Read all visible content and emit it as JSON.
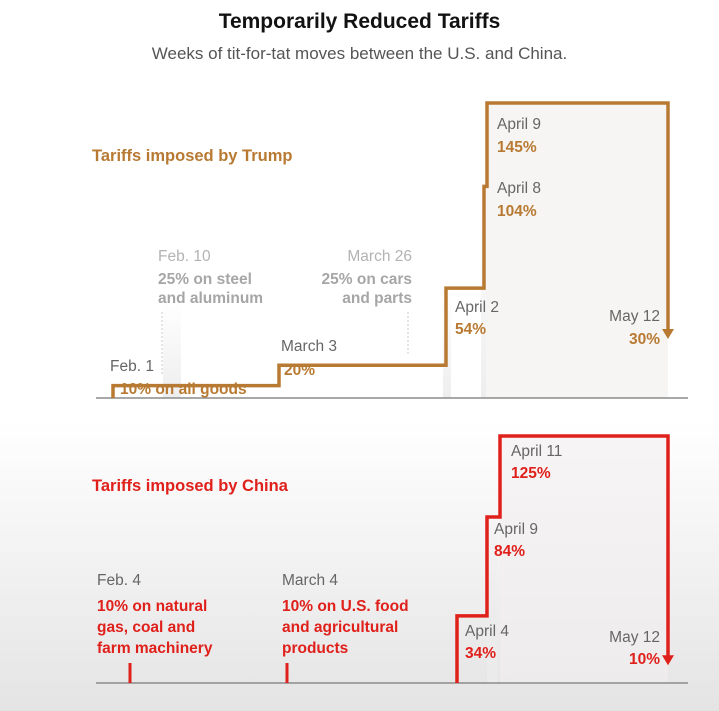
{
  "header": {
    "title": "Temporarily Reduced Tariffs",
    "subtitle": "Weeks of tit-for-tat moves between the U.S. and China."
  },
  "colors": {
    "us": "#b87a32",
    "china": "#e0201b",
    "axis": "#8c8c8c",
    "muted": "#a6a6a6"
  },
  "chart_data": [
    {
      "type": "step-line",
      "title": "Tariffs imposed by Trump",
      "unit": "%",
      "ylim": [
        0,
        145
      ],
      "steps": [
        {
          "date": "Feb. 1",
          "value": 10,
          "label": "10% on all goods"
        },
        {
          "date": "March 3",
          "value": 20,
          "label": "20%"
        },
        {
          "date": "April 2",
          "value": 54,
          "label": "54%"
        },
        {
          "date": "April 8",
          "value": 104,
          "label": "104%"
        },
        {
          "date": "April 9",
          "value": 145,
          "label": "145%"
        },
        {
          "date": "May 12",
          "value": 30,
          "label": "30%"
        }
      ],
      "context_markers": [
        {
          "date": "Feb. 10",
          "label_line1": "25% on steel",
          "label_line2": "and aluminum"
        },
        {
          "date": "March 26",
          "label_line1": "25% on cars",
          "label_line2": "and parts"
        }
      ]
    },
    {
      "type": "step-line",
      "title": "Tariffs imposed by China",
      "unit": "%",
      "ylim": [
        0,
        125
      ],
      "steps": [
        {
          "date": "April 4",
          "value": 34,
          "label": "34%"
        },
        {
          "date": "April 9",
          "value": 84,
          "label": "84%"
        },
        {
          "date": "April 11",
          "value": 125,
          "label": "125%"
        },
        {
          "date": "May 12",
          "value": 10,
          "label": "10%"
        }
      ],
      "targeted_actions": [
        {
          "date": "Feb. 4",
          "label_lines": [
            "10% on natural",
            "gas, coal and",
            "farm machinery"
          ]
        },
        {
          "date": "March 4",
          "label_lines": [
            "10% on U.S. food",
            "and agricultural",
            "products"
          ]
        }
      ]
    }
  ]
}
